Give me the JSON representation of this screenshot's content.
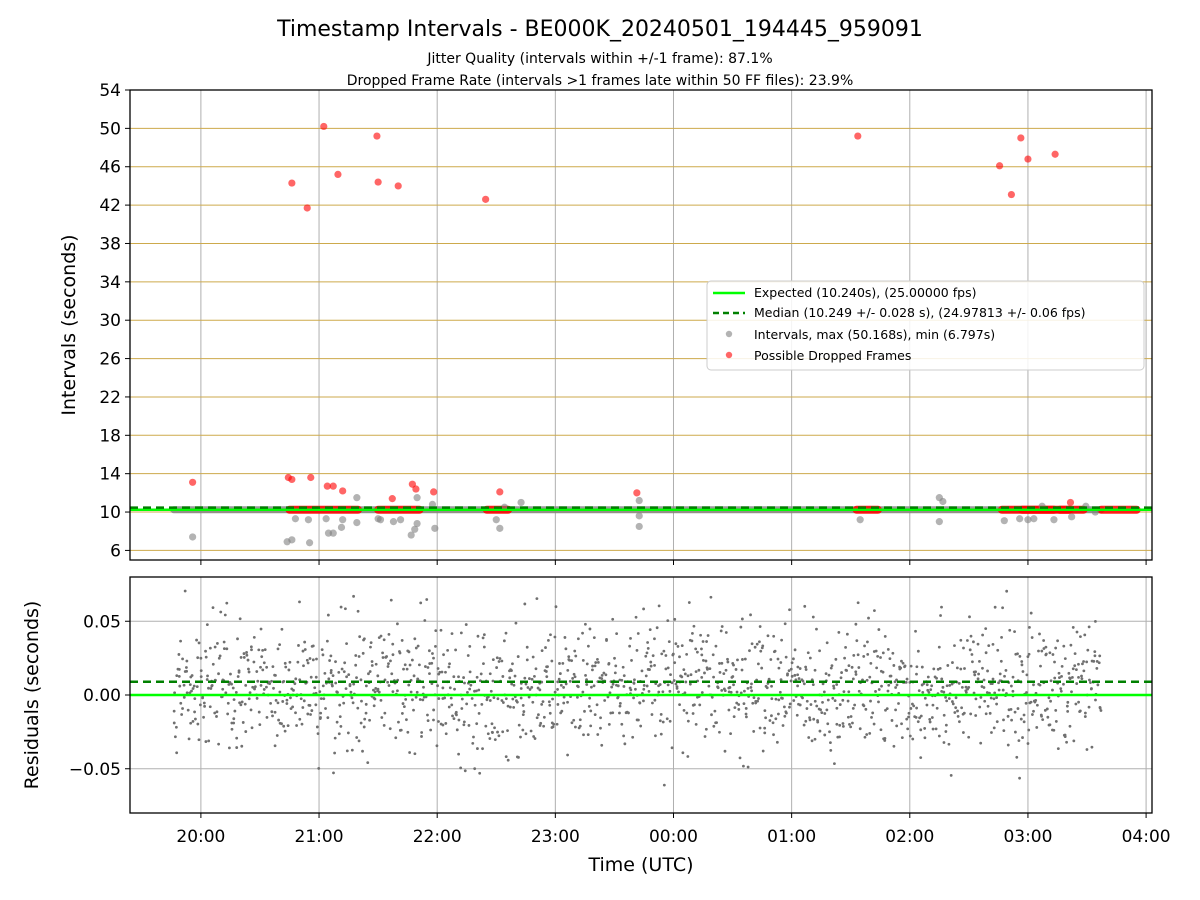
{
  "chart_data": [
    {
      "type": "scatter",
      "title": "Timestamp Intervals - BE000K_20240501_194445_959091",
      "subtitle_lines": [
        "Jitter Quality (intervals within +/-1 frame): 87.1%",
        "Dropped Frame Rate (intervals >1 frames late within 50 FF files): 23.9%"
      ],
      "xlabel": "",
      "ylabel": "Intervals (seconds)",
      "ylim": [
        5,
        54
      ],
      "yticks": [
        6,
        10,
        14,
        18,
        22,
        26,
        30,
        34,
        38,
        42,
        46,
        50,
        54
      ],
      "xlim_hours": [
        19.4,
        28.05
      ],
      "x_tick_hours": [
        20,
        21,
        22,
        23,
        24,
        25,
        26,
        27,
        28
      ],
      "grid": "x major gray; y goldenrod",
      "legend_position": "center-right",
      "legend": [
        "Expected (10.240s), (25.00000 fps)",
        "Median (10.249 +/- 0.028 s), (24.97813 +/- 0.06 fps)",
        "Intervals, max (50.168s), min (6.797s)",
        "Possible Dropped Frames"
      ],
      "expected_interval": 10.24,
      "median_interval": 10.249,
      "baseline_band": {
        "x_start": 19.77,
        "x_end": 27.62,
        "y": 10.24
      },
      "dropped_band_segments": [
        [
          20.75,
          21.33
        ],
        [
          21.5,
          21.85
        ],
        [
          22.42,
          22.6
        ],
        [
          25.55,
          25.73
        ],
        [
          26.78,
          27.22
        ],
        [
          27.27,
          27.47
        ],
        [
          28.95,
          29.0
        ],
        [
          26.95,
          27.35
        ],
        [
          27.92,
          28.22
        ]
      ],
      "dropped_band_y": 10.24,
      "gray_points": [
        [
          19.93,
          7.4
        ],
        [
          20.73,
          6.9
        ],
        [
          20.77,
          7.1
        ],
        [
          20.8,
          9.3
        ],
        [
          20.91,
          9.2
        ],
        [
          20.92,
          6.8
        ],
        [
          21.06,
          9.3
        ],
        [
          21.08,
          7.8
        ],
        [
          21.12,
          7.8
        ],
        [
          21.19,
          8.4
        ],
        [
          21.2,
          9.2
        ],
        [
          21.32,
          8.9
        ],
        [
          21.32,
          11.5
        ],
        [
          21.5,
          9.3
        ],
        [
          21.52,
          9.2
        ],
        [
          21.63,
          9.0
        ],
        [
          21.69,
          9.2
        ],
        [
          21.78,
          7.6
        ],
        [
          21.81,
          8.2
        ],
        [
          21.83,
          11.5
        ],
        [
          21.83,
          8.8
        ],
        [
          21.96,
          10.8
        ],
        [
          21.98,
          8.3
        ],
        [
          22.5,
          9.2
        ],
        [
          22.53,
          8.3
        ],
        [
          22.57,
          10.5
        ],
        [
          22.71,
          11.0
        ],
        [
          23.71,
          9.6
        ],
        [
          23.71,
          8.5
        ],
        [
          23.71,
          11.2
        ],
        [
          25.58,
          9.2
        ],
        [
          26.25,
          11.5
        ],
        [
          26.25,
          9.0
        ],
        [
          26.28,
          11.1
        ],
        [
          26.8,
          9.1
        ],
        [
          26.93,
          9.3
        ],
        [
          27.0,
          9.2
        ],
        [
          27.05,
          9.3
        ],
        [
          27.12,
          10.6
        ],
        [
          27.22,
          9.2
        ],
        [
          27.37,
          9.5
        ],
        [
          27.49,
          10.6
        ],
        [
          27.57,
          10.0
        ],
        [
          28.93,
          11.6
        ],
        [
          28.93,
          9.1
        ],
        [
          28.97,
          9.3
        ],
        [
          29.07,
          9.3
        ],
        [
          29.13,
          9.5
        ],
        [
          29.22,
          11.6
        ],
        [
          29.22,
          8.7
        ],
        [
          29.51,
          8.2
        ],
        [
          29.57,
          11.5
        ],
        [
          29.57,
          8.8
        ]
      ],
      "red_points": [
        [
          19.93,
          13.1
        ],
        [
          20.74,
          13.6
        ],
        [
          20.77,
          13.4
        ],
        [
          20.77,
          44.3
        ],
        [
          20.9,
          41.7
        ],
        [
          20.93,
          13.6
        ],
        [
          21.04,
          50.2
        ],
        [
          21.07,
          12.7
        ],
        [
          21.12,
          12.7
        ],
        [
          21.16,
          45.2
        ],
        [
          21.2,
          12.2
        ],
        [
          21.49,
          49.2
        ],
        [
          21.5,
          44.4
        ],
        [
          21.62,
          11.4
        ],
        [
          21.67,
          44.0
        ],
        [
          21.79,
          12.9
        ],
        [
          21.82,
          12.4
        ],
        [
          21.97,
          12.1
        ],
        [
          22.41,
          42.6
        ],
        [
          22.53,
          12.1
        ],
        [
          23.69,
          12.0
        ],
        [
          25.56,
          49.2
        ],
        [
          26.76,
          46.1
        ],
        [
          26.86,
          43.1
        ],
        [
          26.94,
          49.0
        ],
        [
          27.0,
          46.8
        ],
        [
          27.23,
          47.3
        ],
        [
          27.36,
          11.0
        ],
        [
          28.94,
          48.2
        ],
        [
          29.1,
          41.5
        ],
        [
          29.14,
          11.0
        ],
        [
          29.5,
          12.3
        ]
      ]
    },
    {
      "type": "scatter",
      "title": "",
      "xlabel": "Time (UTC)",
      "ylabel": "Residuals (seconds)",
      "ylim": [
        -0.08,
        0.08
      ],
      "yticks": [
        0.05,
        0.0,
        -0.05
      ],
      "ytick_labels": [
        "0.05",
        "0.00",
        "−0.05"
      ],
      "x_tick_labels": [
        "20:00",
        "21:00",
        "22:00",
        "23:00",
        "00:00",
        "01:00",
        "02:00",
        "03:00",
        "04:00"
      ],
      "grid": "both gray",
      "expected_line": 0.0,
      "median_line": 0.009,
      "residual_x_range_hours": [
        19.77,
        27.62
      ],
      "residual_spread_sd": 0.022,
      "residual_center": 0.005,
      "residual_count": 1600,
      "residual_min": -0.074,
      "residual_max": 0.072
    }
  ],
  "colors": {
    "expected": "#00ff00",
    "median": "#008000",
    "intervals": "#808080",
    "dropped": "#ff0000",
    "ygrid_top": "#cdaa4c",
    "grid": "#b0b0b0",
    "residual_points": "#707070"
  }
}
